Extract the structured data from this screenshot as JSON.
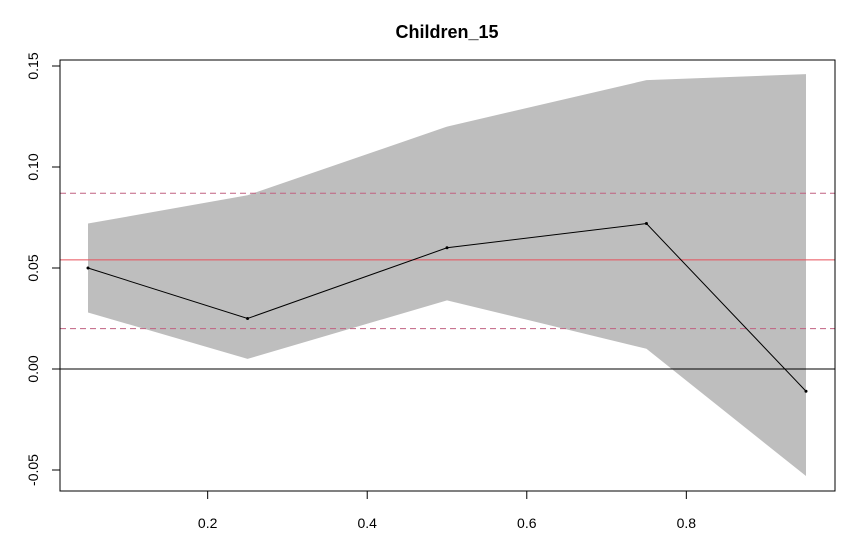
{
  "chart_data": {
    "type": "line",
    "title": "Children_15",
    "xlabel": "",
    "ylabel": "",
    "xlim": [
      0.05,
      0.95
    ],
    "ylim": [
      -0.055,
      0.15
    ],
    "x_ticks": [
      0.2,
      0.4,
      0.6,
      0.8
    ],
    "x_tick_labels": [
      "0.2",
      "0.4",
      "0.6",
      "0.8"
    ],
    "y_ticks": [
      -0.05,
      0.0,
      0.05,
      0.1,
      0.15
    ],
    "y_tick_labels": [
      "-0.05",
      "0.00",
      "0.05",
      "0.10",
      "0.15"
    ],
    "grid": false,
    "x": [
      0.05,
      0.25,
      0.5,
      0.75,
      0.95
    ],
    "series": [
      {
        "values": [
          0.05,
          0.025,
          0.06,
          0.072,
          -0.011
        ]
      }
    ],
    "band": {
      "upper": [
        0.072,
        0.086,
        0.12,
        0.143,
        0.146
      ],
      "lower": [
        0.028,
        0.005,
        0.034,
        0.01,
        -0.053
      ]
    },
    "reference_lines": [
      {
        "y": 0.054,
        "style": "solid",
        "color": "#e8505b"
      },
      {
        "y": 0.087,
        "style": "dashed",
        "color": "#c06080"
      },
      {
        "y": 0.02,
        "style": "dashed",
        "color": "#c06080"
      },
      {
        "y": 0.0,
        "style": "solid",
        "color": "#000000"
      }
    ],
    "colors": {
      "band": "#bebebe",
      "line": "#000000"
    }
  }
}
